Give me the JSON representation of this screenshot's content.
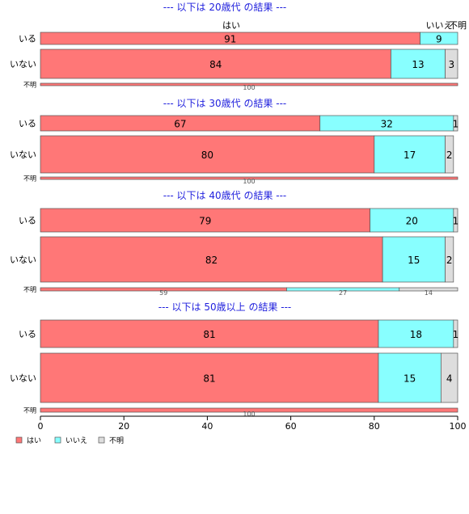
{
  "chart_data": {
    "type": "bar",
    "orientation": "horizontal",
    "stacked": true,
    "colors": {
      "はい": "#ff7777",
      "いいえ": "#88ffff",
      "不明": "#dddddd"
    },
    "series_names": [
      "はい",
      "いいえ",
      "不明"
    ],
    "top_labels": [
      "はい",
      "いいえ",
      "不明"
    ],
    "xlim": [
      0,
      100
    ],
    "xticks": [
      0,
      20,
      40,
      60,
      80,
      100
    ],
    "groups": [
      {
        "title": "--- 以下は 20歳代 の結果 ---",
        "rows": [
          {
            "label": "いる",
            "values": [
              91,
              9,
              0
            ]
          },
          {
            "label": "いない",
            "values": [
              84,
              13,
              3
            ]
          },
          {
            "label": "不明",
            "values": [
              100,
              0,
              0
            ]
          }
        ]
      },
      {
        "title": "--- 以下は 30歳代 の結果 ---",
        "rows": [
          {
            "label": "いる",
            "values": [
              67,
              32,
              1
            ]
          },
          {
            "label": "いない",
            "values": [
              80,
              17,
              2
            ]
          },
          {
            "label": "不明",
            "values": [
              100,
              0,
              0
            ]
          }
        ]
      },
      {
        "title": "--- 以下は 40歳代 の結果 ---",
        "rows": [
          {
            "label": "いる",
            "values": [
              79,
              20,
              1
            ]
          },
          {
            "label": "いない",
            "values": [
              82,
              15,
              2
            ]
          },
          {
            "label": "不明",
            "values": [
              59,
              27,
              14
            ]
          }
        ]
      },
      {
        "title": "--- 以下は 50歳以上 の結果 ---",
        "rows": [
          {
            "label": "いる",
            "values": [
              81,
              18,
              1
            ]
          },
          {
            "label": "いない",
            "values": [
              81,
              15,
              4
            ]
          },
          {
            "label": "不明",
            "values": [
              100,
              0,
              0
            ]
          }
        ]
      }
    ],
    "legend": [
      "はい",
      "いいえ",
      "不明"
    ],
    "legend_position": "bottom-left"
  }
}
